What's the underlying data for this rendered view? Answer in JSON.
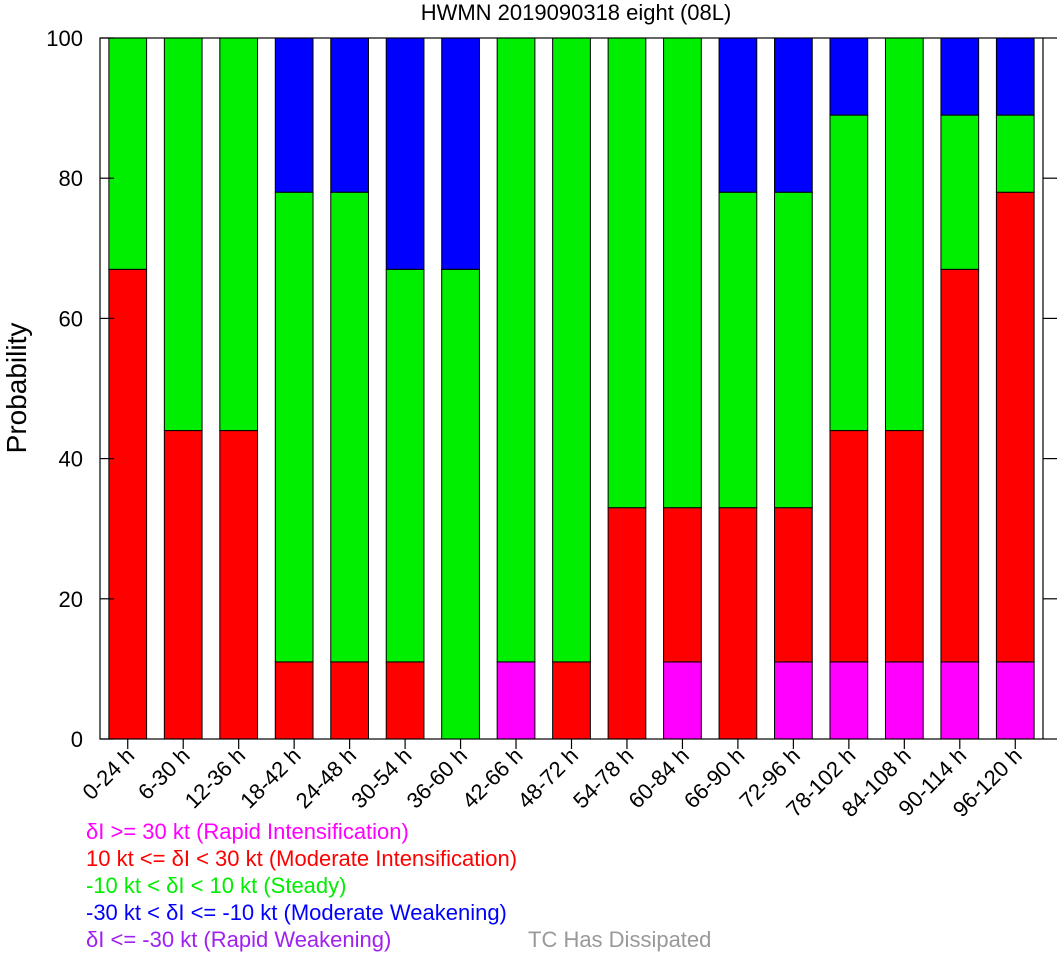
{
  "chart_data": {
    "type": "bar",
    "stacked": true,
    "title": "HWMN 2019090318 eight (08L)",
    "xlabel": "",
    "ylabel": "Probability",
    "ylim": [
      0,
      100
    ],
    "yticks": [
      0,
      20,
      40,
      60,
      80,
      100
    ],
    "grid": false,
    "categories": [
      "0-24 h",
      "6-30 h",
      "12-36 h",
      "18-42 h",
      "24-48 h",
      "30-54 h",
      "36-60 h",
      "42-66 h",
      "48-72 h",
      "54-78 h",
      "60-84 h",
      "66-90 h",
      "72-96 h",
      "78-102 h",
      "84-108 h",
      "90-114 h",
      "96-120 h"
    ],
    "series": [
      {
        "key": "rapid_weakening",
        "color": "#a020f0",
        "values": [
          0,
          0,
          0,
          0,
          0,
          0,
          0,
          0,
          0,
          0,
          0,
          0,
          0,
          0,
          0,
          0,
          0
        ]
      },
      {
        "key": "rapid_intensification",
        "color": "#ff00ff",
        "values": [
          0,
          0,
          0,
          0,
          0,
          0,
          0,
          11,
          0,
          0,
          11,
          0,
          11,
          11,
          11,
          11,
          11
        ]
      },
      {
        "key": "moderate_intensification",
        "color": "#ff0000",
        "values": [
          67,
          44,
          44,
          11,
          11,
          11,
          0,
          0,
          11,
          33,
          22,
          33,
          22,
          33,
          33,
          56,
          67
        ]
      },
      {
        "key": "steady",
        "color": "#00ee00",
        "values": [
          33,
          56,
          56,
          67,
          67,
          56,
          67,
          89,
          89,
          67,
          67,
          45,
          45,
          45,
          56,
          22,
          11
        ]
      },
      {
        "key": "moderate_weakening",
        "color": "#0000ff",
        "values": [
          0,
          0,
          0,
          22,
          22,
          33,
          33,
          0,
          0,
          0,
          0,
          22,
          22,
          11,
          0,
          11,
          11
        ]
      }
    ]
  },
  "legend": [
    {
      "text": "δI >= 30 kt (Rapid Intensification)",
      "color": "#ff00ff"
    },
    {
      "text": "10 kt <= δI < 30 kt (Moderate Intensification)",
      "color": "#ff0000"
    },
    {
      "text": "-10 kt < δI < 10 kt (Steady)",
      "color": "#00ee00"
    },
    {
      "text": "-30 kt < δI <= -10 kt (Moderate Weakening)",
      "color": "#0000ff"
    },
    {
      "text": "δI <= -30 kt (Rapid Weakening)",
      "color": "#a020f0"
    }
  ],
  "dissipated_label": "TC Has Dissipated",
  "dissipated_color": "#999999"
}
